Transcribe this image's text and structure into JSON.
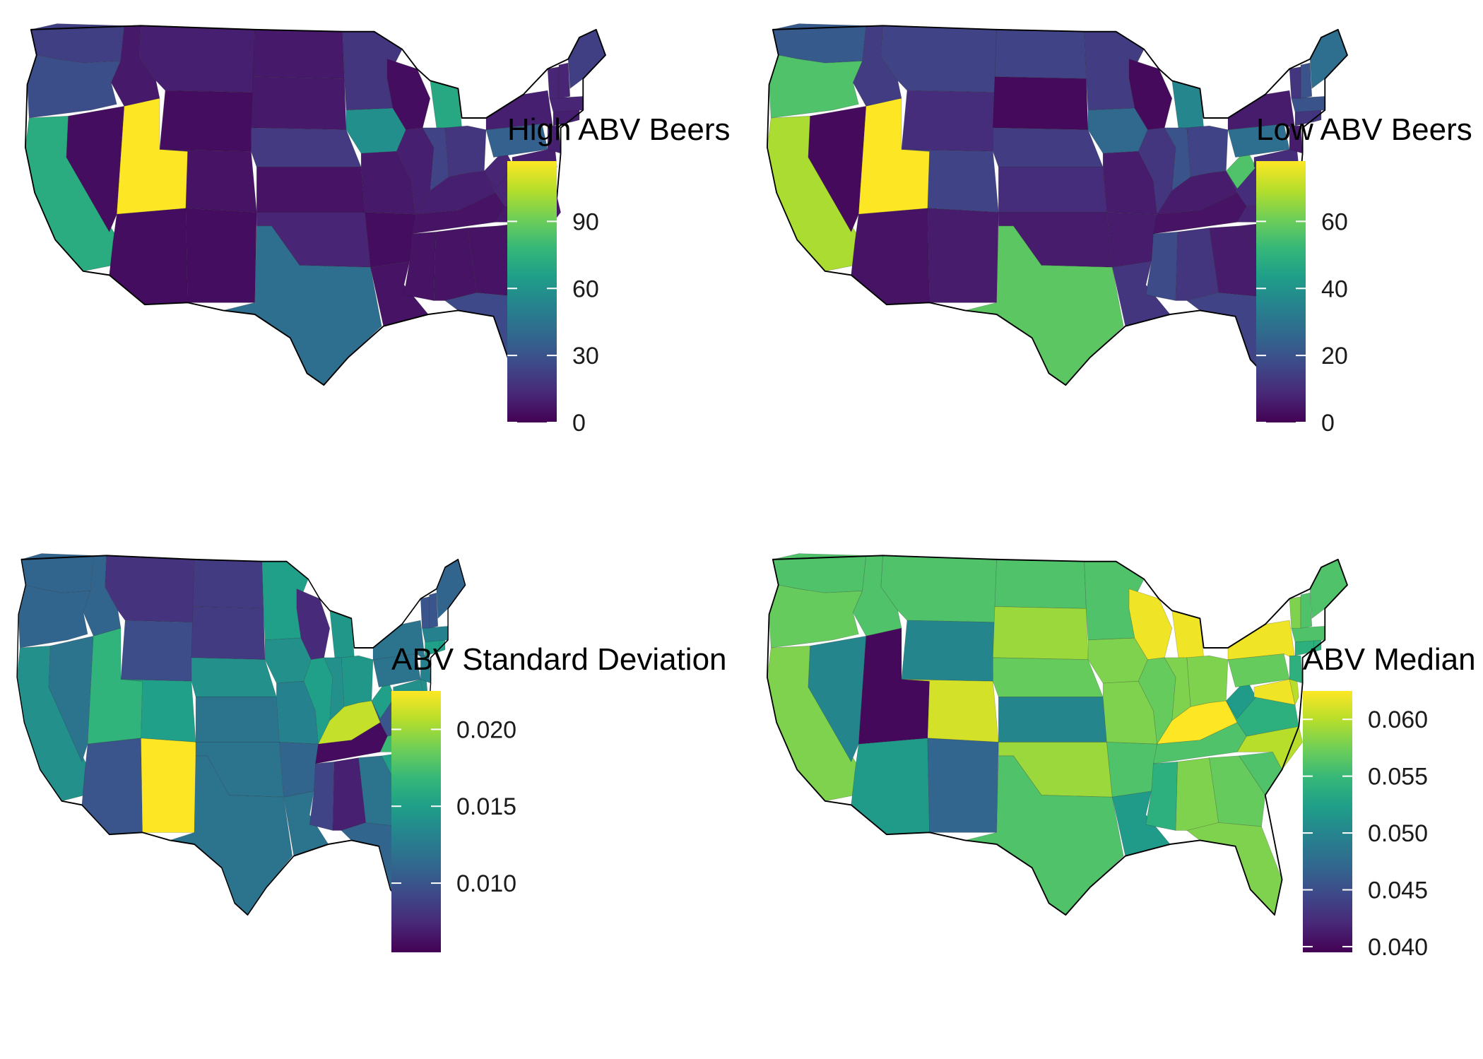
{
  "palette": [
    "#440154",
    "#482878",
    "#3e4989",
    "#31688e",
    "#26828e",
    "#1f9e89",
    "#35b779",
    "#6ece58",
    "#b5de2b",
    "#fde725"
  ],
  "panels": [
    {
      "id": "high-abv",
      "legend_title": "High ABV Beers",
      "scale": {
        "min": 0,
        "max": 117
      },
      "ticks": [
        {
          "value": 0,
          "label": "0"
        },
        {
          "value": 30,
          "label": "30"
        },
        {
          "value": 60,
          "label": "60"
        },
        {
          "value": 90,
          "label": "90"
        }
      ],
      "states": {
        "WA": 22,
        "OR": 28,
        "CA": 72,
        "NV": 4,
        "ID": 8,
        "MT": 10,
        "WY": 4,
        "UT": 117,
        "AZ": 4,
        "CO": 6,
        "NM": 4,
        "ND": 8,
        "SD": 8,
        "NE": 20,
        "KS": 6,
        "OK": 12,
        "TX": 42,
        "MN": 18,
        "IA": 58,
        "MO": 8,
        "AR": 4,
        "LA": 6,
        "WI": 4,
        "IL": 10,
        "MI": 70,
        "IN": 24,
        "OH": 18,
        "KY": 10,
        "TN": 6,
        "MS": 6,
        "AL": 6,
        "GA": 6,
        "FL": 26,
        "SC": 6,
        "NC": 8,
        "VA": 12,
        "WV": 12,
        "PA": 36,
        "NY": 10,
        "MD": 10,
        "DE": 10,
        "NJ": 10,
        "CT": 10,
        "RI": 10,
        "MA": 12,
        "VT": 12,
        "NH": 12,
        "ME": 22
      }
    },
    {
      "id": "low-abv",
      "legend_title": "Low ABV Beers",
      "scale": {
        "min": 0,
        "max": 78
      },
      "ticks": [
        {
          "value": 0,
          "label": "0"
        },
        {
          "value": 20,
          "label": "20"
        },
        {
          "value": 40,
          "label": "40"
        },
        {
          "value": 60,
          "label": "60"
        }
      ],
      "states": {
        "WA": 22,
        "OR": 56,
        "CA": 68,
        "NV": 2,
        "ID": 14,
        "MT": 16,
        "WY": 10,
        "UT": 78,
        "AZ": 4,
        "CO": 16,
        "NM": 6,
        "ND": 16,
        "SD": 2,
        "NE": 14,
        "KS": 10,
        "OK": 6,
        "TX": 58,
        "MN": 14,
        "IA": 26,
        "MO": 6,
        "AR": 6,
        "LA": 12,
        "WI": 2,
        "IL": 12,
        "MI": 36,
        "IN": 20,
        "OH": 16,
        "KY": 6,
        "TN": 4,
        "MS": 18,
        "AL": 12,
        "GA": 6,
        "FL": 16,
        "SC": 6,
        "NC": 8,
        "VA": 10,
        "WV": 56,
        "PA": 28,
        "NY": 6,
        "MD": 10,
        "DE": 10,
        "NJ": 6,
        "CT": 12,
        "RI": 12,
        "MA": 20,
        "VT": 12,
        "NH": 20,
        "ME": 28
      }
    },
    {
      "id": "abv-sd",
      "legend_title": "ABV Standard Deviation",
      "scale": {
        "min": 0.0055,
        "max": 0.0225
      },
      "ticks": [
        {
          "value": 0.01,
          "label": "0.010"
        },
        {
          "value": 0.015,
          "label": "0.015"
        },
        {
          "value": 0.02,
          "label": "0.020"
        }
      ],
      "states": {
        "WA": 0.011,
        "OR": 0.011,
        "CA": 0.014,
        "NV": 0.012,
        "ID": 0.011,
        "MT": 0.008,
        "WY": 0.0095,
        "UT": 0.0165,
        "AZ": 0.01,
        "CO": 0.015,
        "NM": 0.0225,
        "ND": 0.0085,
        "SD": 0.0085,
        "NE": 0.014,
        "KS": 0.012,
        "OK": 0.012,
        "TX": 0.012,
        "MN": 0.015,
        "IA": 0.014,
        "MO": 0.013,
        "AR": 0.011,
        "LA": 0.012,
        "WI": 0.0075,
        "IL": 0.015,
        "MI": 0.0145,
        "IN": 0.014,
        "OH": 0.0145,
        "KY": 0.021,
        "TN": 0.006,
        "MS": 0.009,
        "AL": 0.007,
        "GA": 0.012,
        "FL": 0.011,
        "SC": 0.015,
        "NC": 0.017,
        "VA": 0.01,
        "WV": 0.015,
        "PA": 0.012,
        "NY": 0.012,
        "MD": 0.014,
        "DE": 0.014,
        "NJ": 0.013,
        "CT": 0.015,
        "RI": 0.015,
        "MA": 0.013,
        "VT": 0.01,
        "NH": 0.01,
        "ME": 0.011
      }
    },
    {
      "id": "abv-median",
      "legend_title": "ABV Median",
      "scale": {
        "min": 0.0395,
        "max": 0.0625
      },
      "ticks": [
        {
          "value": 0.04,
          "label": "0.040"
        },
        {
          "value": 0.045,
          "label": "0.045"
        },
        {
          "value": 0.05,
          "label": "0.050"
        },
        {
          "value": 0.055,
          "label": "0.055"
        },
        {
          "value": 0.06,
          "label": "0.060"
        }
      ],
      "states": {
        "WA": 0.056,
        "OR": 0.057,
        "CA": 0.058,
        "NV": 0.05,
        "ID": 0.056,
        "MT": 0.056,
        "WY": 0.05,
        "UT": 0.04,
        "AZ": 0.052,
        "CO": 0.061,
        "NM": 0.047,
        "ND": 0.056,
        "SD": 0.059,
        "NE": 0.057,
        "KS": 0.05,
        "OK": 0.059,
        "TX": 0.056,
        "MN": 0.056,
        "IA": 0.058,
        "MO": 0.058,
        "AR": 0.056,
        "LA": 0.052,
        "WI": 0.062,
        "IL": 0.057,
        "MI": 0.062,
        "IN": 0.058,
        "OH": 0.058,
        "KY": 0.0625,
        "TN": 0.056,
        "MS": 0.054,
        "AL": 0.058,
        "GA": 0.057,
        "FL": 0.058,
        "SC": 0.056,
        "NC": 0.06,
        "VA": 0.054,
        "WV": 0.052,
        "PA": 0.057,
        "NY": 0.062,
        "MD": 0.062,
        "DE": 0.06,
        "NJ": 0.054,
        "CT": 0.054,
        "RI": 0.054,
        "MA": 0.056,
        "VT": 0.058,
        "NH": 0.056,
        "ME": 0.056
      }
    }
  ]
}
